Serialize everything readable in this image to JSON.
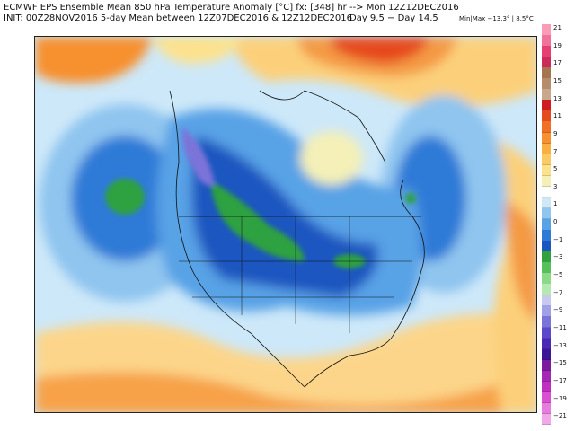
{
  "header": {
    "line1": "ECMWF EPS Ensemble Mean 850 hPa Temperature Anomaly [°C] fx: [348] hr --> Mon 12Z12DEC2016",
    "line2": "INIT: 00Z28NOV2016 5-day Mean between 12Z07DEC2016 & 12Z12DEC2016",
    "days": "Day 9.5 − Day 14.5",
    "minmax": "Min|Max −13.3° | 8.5°C"
  },
  "colors": {
    "background": "#ffffff",
    "border": "#222222",
    "warm_max": "#e8402a",
    "cold_min": "#c02fc0"
  },
  "map": {
    "region": "North America",
    "field": "850 hPa temperature anomaly",
    "features": [
      "Strong cold anomaly over western Canada and the central United States",
      "Warm anomaly over Greenland and the Arctic",
      "Cold pool over the north Pacific",
      "Cold pool over the northwest Atlantic",
      "Warm anomaly over the Gulf of Mexico and Caribbean"
    ]
  },
  "scale": {
    "labels": [
      "21",
      "19",
      "17",
      "15",
      "13",
      "11",
      "9",
      "7",
      "5",
      "3",
      "1",
      "0",
      "−1",
      "−3",
      "−5",
      "−7",
      "−9",
      "−11",
      "−13",
      "−15",
      "−17",
      "−19",
      "−21"
    ],
    "colors": [
      "#fa9cb8",
      "#f1729c",
      "#e63f72",
      "#cb2a5a",
      "#a5754f",
      "#b58d6a",
      "#c9a78c",
      "#cf1c20",
      "#e64a1f",
      "#f07028",
      "#f7902f",
      "#fbae42",
      "#fcca65",
      "#fde28d",
      "#f4f0b7",
      "#ffffff",
      "#cde8f9",
      "#8fc5ef",
      "#58a2e6",
      "#2f7ad7",
      "#1c57c0",
      "#2fa13f",
      "#58c05a",
      "#8dd98a",
      "#b6e8b1",
      "#c9c9ef",
      "#a0a0e6",
      "#7b73d9",
      "#5b48cd",
      "#4a27b6",
      "#3b1798",
      "#7b1b9d",
      "#a426b5",
      "#c02fc0",
      "#d951d0",
      "#e67ddb",
      "#f0a8e8"
    ]
  }
}
